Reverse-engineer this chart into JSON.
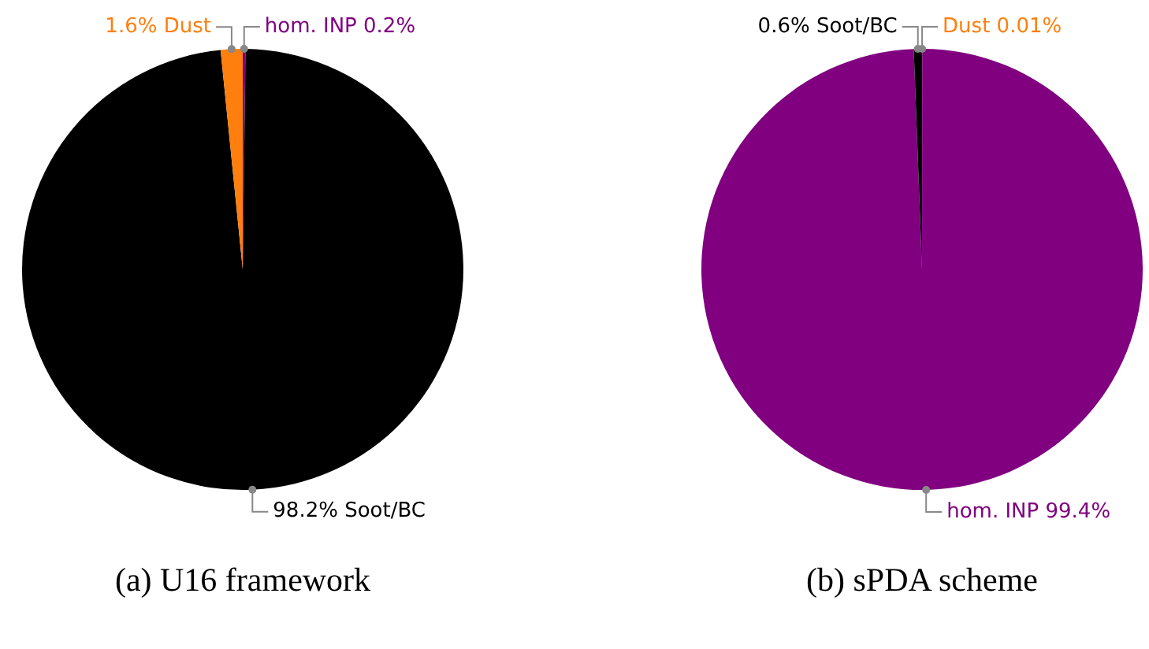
{
  "chart_data": [
    {
      "type": "pie",
      "title": "(a) U16 framework",
      "categories": [
        "hom. INP",
        "Soot/BC",
        "Dust"
      ],
      "values": [
        0.2,
        98.2,
        1.6
      ],
      "colors": [
        "#800080",
        "#000000",
        "#ff7f0e"
      ],
      "value_labels": [
        "0.2%",
        "98.2%",
        "1.6%"
      ],
      "legend": false
    },
    {
      "type": "pie",
      "title": "(b) sPDA scheme",
      "categories": [
        "Dust",
        "hom. INP",
        "Soot/BC"
      ],
      "values": [
        0.01,
        99.4,
        0.6
      ],
      "colors": [
        "#ff7f0e",
        "#800080",
        "#000000"
      ],
      "value_labels": [
        "0.01%",
        "99.4%",
        "0.6%"
      ],
      "legend": false
    }
  ]
}
